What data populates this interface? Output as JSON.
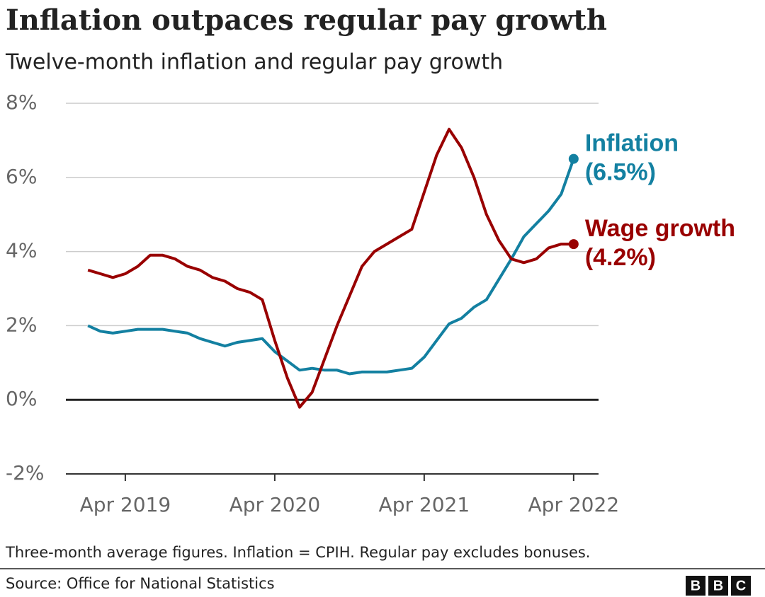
{
  "chart_data": {
    "type": "line",
    "title": "Inflation outpaces regular pay growth",
    "subtitle": "Twelve-month inflation and regular pay growth",
    "x": [
      "2019-01",
      "2019-02",
      "2019-03",
      "2019-04",
      "2019-05",
      "2019-06",
      "2019-07",
      "2019-08",
      "2019-09",
      "2019-10",
      "2019-11",
      "2019-12",
      "2020-01",
      "2020-02",
      "2020-03",
      "2020-04",
      "2020-05",
      "2020-06",
      "2020-07",
      "2020-08",
      "2020-09",
      "2020-10",
      "2020-11",
      "2020-12",
      "2021-01",
      "2021-02",
      "2021-03",
      "2021-04",
      "2021-05",
      "2021-06",
      "2021-07",
      "2021-08",
      "2021-09",
      "2021-10",
      "2021-11",
      "2021-12",
      "2022-01",
      "2022-02",
      "2022-03",
      "2022-04"
    ],
    "series": [
      {
        "name": "Inflation",
        "color": "#1380a1",
        "end_label": "(6.5%)",
        "values": [
          2.0,
          1.85,
          1.8,
          1.85,
          1.9,
          1.9,
          1.9,
          1.85,
          1.8,
          1.65,
          1.55,
          1.45,
          1.55,
          1.6,
          1.65,
          1.3,
          1.05,
          0.8,
          0.85,
          0.8,
          0.8,
          0.7,
          0.75,
          0.75,
          0.75,
          0.8,
          0.85,
          1.15,
          1.6,
          2.05,
          2.2,
          2.5,
          2.7,
          3.25,
          3.8,
          4.4,
          4.75,
          5.1,
          5.55,
          6.5
        ]
      },
      {
        "name": "Wage growth",
        "color": "#990000",
        "end_label": "(4.2%)",
        "values": [
          3.5,
          3.4,
          3.3,
          3.4,
          3.6,
          3.9,
          3.9,
          3.8,
          3.6,
          3.5,
          3.3,
          3.2,
          3.0,
          2.9,
          2.7,
          1.6,
          0.6,
          -0.2,
          0.2,
          1.1,
          2.0,
          2.8,
          3.6,
          4.0,
          4.2,
          4.4,
          4.6,
          5.6,
          6.6,
          7.3,
          6.8,
          6.0,
          5.0,
          4.3,
          3.8,
          3.7,
          3.8,
          4.1,
          4.2,
          4.2
        ]
      }
    ],
    "xlim": [
      "2018-11",
      "2022-06"
    ],
    "xticks": [
      {
        "value": "2019-04",
        "label": "Apr 2019"
      },
      {
        "value": "2020-04",
        "label": "Apr 2020"
      },
      {
        "value": "2021-04",
        "label": "Apr 2021"
      },
      {
        "value": "2022-04",
        "label": "Apr 2022"
      }
    ],
    "ylim": [
      -2,
      8
    ],
    "yticks": [
      {
        "value": -2,
        "label": "-2%"
      },
      {
        "value": 0,
        "label": "0%"
      },
      {
        "value": 2,
        "label": "2%"
      },
      {
        "value": 4,
        "label": "4%"
      },
      {
        "value": 6,
        "label": "6%"
      },
      {
        "value": 8,
        "label": "8%"
      }
    ],
    "grid": true,
    "note": "Three-month average figures. Inflation = CPIH. Regular pay excludes bonuses.",
    "source": "Source: Office for National Statistics",
    "logo": [
      "B",
      "B",
      "C"
    ]
  }
}
